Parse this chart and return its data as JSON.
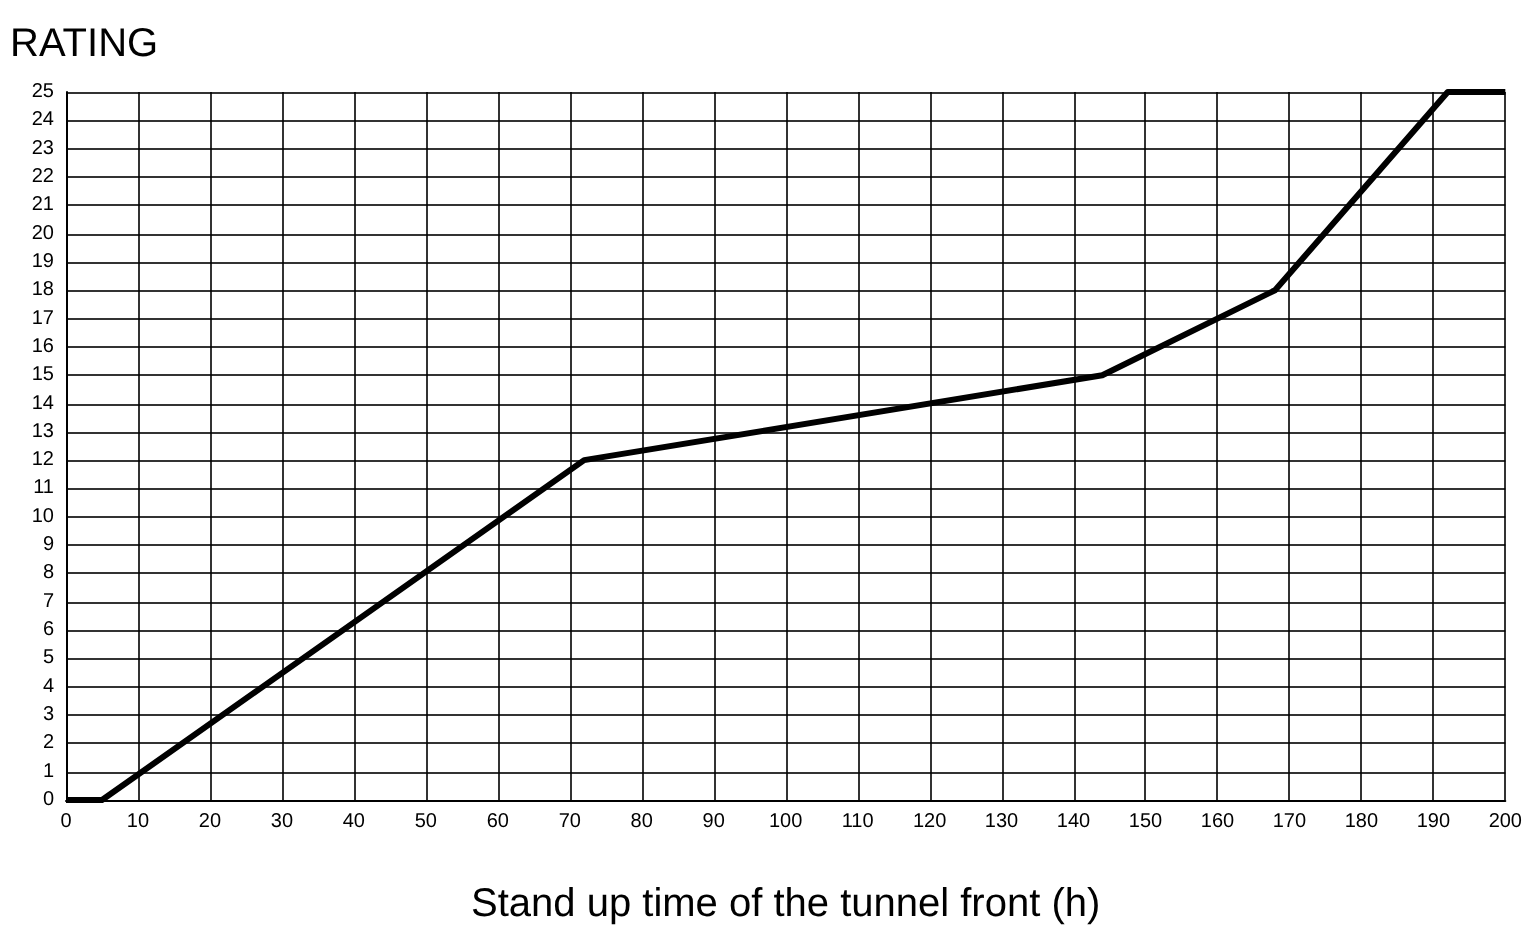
{
  "chart_data": {
    "type": "line",
    "ylabel": "RATING",
    "xlabel": "Stand up time of the tunnel front (h)",
    "series": [
      {
        "color": "#000000",
        "x": [
          0,
          5,
          72,
          144,
          168,
          192,
          200
        ],
        "values": [
          0,
          0,
          12,
          15,
          18,
          25,
          25
        ]
      }
    ],
    "xlim": [
      0,
      200
    ],
    "xticks": [
      0,
      10,
      20,
      30,
      40,
      50,
      60,
      70,
      80,
      90,
      100,
      110,
      120,
      130,
      140,
      150,
      160,
      170,
      180,
      190,
      200
    ],
    "ylim": [
      0,
      25
    ],
    "yticks": [
      0,
      1,
      2,
      3,
      4,
      5,
      6,
      7,
      8,
      9,
      10,
      11,
      12,
      13,
      14,
      15,
      16,
      17,
      18,
      19,
      20,
      21,
      22,
      23,
      24,
      25
    ],
    "grid": true,
    "marker": "none",
    "line_style": "solid"
  }
}
